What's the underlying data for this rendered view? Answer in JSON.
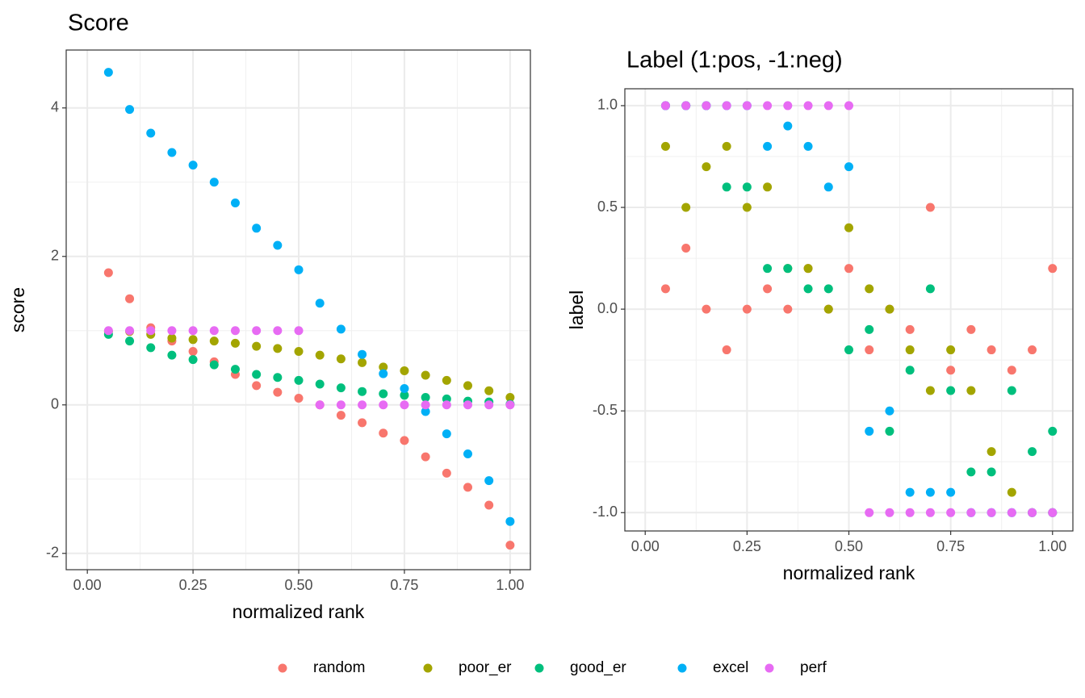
{
  "chart_data": [
    {
      "type": "scatter",
      "title": "Score",
      "x_label": "normalized rank",
      "y_label": "score",
      "x": [
        0.05,
        0.1,
        0.15,
        0.2,
        0.25,
        0.3,
        0.35,
        0.4,
        0.45,
        0.5,
        0.55,
        0.6,
        0.65,
        0.7,
        0.75,
        0.8,
        0.85,
        0.9,
        0.95,
        1.0
      ],
      "series": [
        {
          "name": "random",
          "color": "#F8766D",
          "values": [
            1.78,
            1.43,
            1.04,
            0.86,
            0.72,
            0.58,
            0.41,
            0.26,
            0.17,
            0.09,
            0.0,
            -0.14,
            -0.24,
            -0.38,
            -0.48,
            -0.7,
            -0.92,
            -1.11,
            -1.35,
            -1.89
          ]
        },
        {
          "name": "poor_er",
          "color": "#A3A500",
          "values": [
            0.99,
            0.99,
            0.95,
            0.9,
            0.88,
            0.86,
            0.83,
            0.79,
            0.76,
            0.72,
            0.67,
            0.62,
            0.57,
            0.51,
            0.46,
            0.4,
            0.33,
            0.26,
            0.19,
            0.1
          ]
        },
        {
          "name": "good_er",
          "color": "#00BF7D",
          "values": [
            0.95,
            0.86,
            0.77,
            0.67,
            0.61,
            0.54,
            0.48,
            0.41,
            0.37,
            0.33,
            0.28,
            0.23,
            0.18,
            0.15,
            0.13,
            0.1,
            0.08,
            0.05,
            0.04,
            0.01
          ]
        },
        {
          "name": "excel",
          "color": "#00B0F6",
          "values": [
            4.48,
            3.98,
            3.66,
            3.4,
            3.23,
            3.0,
            2.72,
            2.38,
            2.15,
            1.82,
            1.37,
            1.02,
            0.68,
            0.42,
            0.22,
            -0.09,
            -0.39,
            -0.66,
            -1.02,
            -1.57
          ]
        },
        {
          "name": "perf",
          "color": "#E76BF3",
          "values": [
            1,
            1,
            1,
            1,
            1,
            1,
            1,
            1,
            1,
            1,
            0,
            0,
            0,
            0,
            0,
            0,
            0,
            0,
            0,
            0
          ]
        }
      ],
      "xlim": [
        -0.05,
        1.048
      ],
      "ylim": [
        -2.22,
        4.78
      ],
      "xticks": [
        {
          "value": 0,
          "label": "0.00"
        },
        {
          "value": 0.25,
          "label": "0.25"
        },
        {
          "value": 0.5,
          "label": "0.50"
        },
        {
          "value": 0.75,
          "label": "0.75"
        },
        {
          "value": 1,
          "label": "1.00"
        }
      ],
      "yticks": [
        -2,
        0,
        2,
        4
      ],
      "grid": true
    },
    {
      "type": "scatter",
      "title": "Label (1:pos, -1:neg)",
      "x_label": "normalized rank",
      "y_label": "label",
      "x": [
        0.05,
        0.1,
        0.15,
        0.2,
        0.25,
        0.3,
        0.35,
        0.4,
        0.45,
        0.5,
        0.55,
        0.6,
        0.65,
        0.7,
        0.75,
        0.8,
        0.85,
        0.9,
        0.95,
        1.0
      ],
      "series": [
        {
          "name": "random",
          "color": "#F8766D",
          "values": [
            0.1,
            0.3,
            0.0,
            -0.2,
            0.0,
            0.1,
            0.0,
            0.2,
            0.0,
            0.2,
            -0.2,
            0.0,
            -0.1,
            0.5,
            -0.3,
            -0.1,
            -0.2,
            -0.3,
            -0.2,
            0.2
          ]
        },
        {
          "name": "poor_er",
          "color": "#A3A500",
          "values": [
            0.8,
            0.5,
            0.7,
            0.8,
            0.5,
            0.6,
            0.2,
            0.2,
            0.0,
            0.4,
            0.1,
            0.0,
            -0.2,
            -0.4,
            -0.2,
            -0.4,
            -0.7,
            -0.9,
            -1.0,
            -1.0
          ]
        },
        {
          "name": "good_er",
          "color": "#00BF7D",
          "values": [
            1.0,
            1.0,
            1.0,
            0.6,
            0.6,
            0.2,
            0.2,
            0.1,
            0.1,
            -0.2,
            -0.1,
            -0.6,
            -0.3,
            0.1,
            -0.4,
            -0.8,
            -0.8,
            -0.4,
            -0.7,
            -0.6
          ]
        },
        {
          "name": "excel",
          "color": "#00B0F6",
          "values": [
            1.0,
            1.0,
            1.0,
            1.0,
            1.0,
            0.8,
            0.9,
            0.8,
            0.6,
            0.7,
            -0.6,
            -0.5,
            -0.9,
            -0.9,
            -0.9,
            -1.0,
            -1.0,
            -1.0,
            -1.0,
            -1.0
          ]
        },
        {
          "name": "perf",
          "color": "#E76BF3",
          "values": [
            1,
            1,
            1,
            1,
            1,
            1,
            1,
            1,
            1,
            1,
            -1,
            -1,
            -1,
            -1,
            -1,
            -1,
            -1,
            -1,
            -1,
            -1
          ]
        }
      ],
      "xlim": [
        -0.05,
        1.05
      ],
      "ylim": [
        -1.09,
        1.083
      ],
      "xticks": [
        {
          "value": 0,
          "label": "0.00"
        },
        {
          "value": 0.25,
          "label": "0.25"
        },
        {
          "value": 0.5,
          "label": "0.50"
        },
        {
          "value": 0.75,
          "label": "0.75"
        },
        {
          "value": 1,
          "label": "1.00"
        }
      ],
      "yticks": [
        {
          "value": -1,
          "label": "-1.0"
        },
        {
          "value": -0.5,
          "label": "-0.5"
        },
        {
          "value": 0,
          "label": "0.0"
        },
        {
          "value": 0.5,
          "label": "0.5"
        },
        {
          "value": 1,
          "label": "1.0"
        }
      ],
      "grid": true
    }
  ]
}
